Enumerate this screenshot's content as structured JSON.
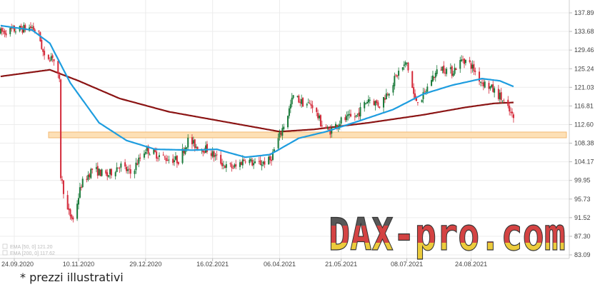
{
  "chart_data": {
    "type": "candlestick",
    "title": "",
    "xlabel": "",
    "ylabel": "",
    "x_ticks": [
      "24.09.2020",
      "10.11.2020",
      "29.12.2020",
      "16.02.2021",
      "06.04.2021",
      "21.05.2021",
      "08.07.2021",
      "24.08.2021"
    ],
    "y_ticks": [
      "137.89",
      "133.68",
      "129.46",
      "125.24",
      "121.03",
      "116.81",
      "112.60",
      "108.38",
      "104.17",
      "99.95",
      "95.73",
      "91.52",
      "87.30",
      "83.09"
    ],
    "ylim": [
      83.09,
      137.89
    ],
    "grid": true,
    "price_anchors": [
      {
        "d": "2020-09-14",
        "p": 133.5
      },
      {
        "d": "2020-09-24",
        "p": 134.0
      },
      {
        "d": "2020-10-07",
        "p": 134.6
      },
      {
        "d": "2020-10-12",
        "p": 133.0
      },
      {
        "d": "2020-10-16",
        "p": 127.5
      },
      {
        "d": "2020-10-22",
        "p": 128.2
      },
      {
        "d": "2020-10-27",
        "p": 122.0
      },
      {
        "d": "2020-10-28",
        "p": 101.0
      },
      {
        "d": "2020-11-02",
        "p": 93.0
      },
      {
        "d": "2020-11-06",
        "p": 91.0
      },
      {
        "d": "2020-11-12",
        "p": 99.0
      },
      {
        "d": "2020-11-20",
        "p": 102.5
      },
      {
        "d": "2020-12-01",
        "p": 101.0
      },
      {
        "d": "2020-12-10",
        "p": 103.5
      },
      {
        "d": "2020-12-18",
        "p": 101.5
      },
      {
        "d": "2020-12-29",
        "p": 107.0
      },
      {
        "d": "2021-01-12",
        "p": 105.0
      },
      {
        "d": "2021-01-22",
        "p": 104.5
      },
      {
        "d": "2021-01-29",
        "p": 109.0
      },
      {
        "d": "2021-02-05",
        "p": 107.5
      },
      {
        "d": "2021-02-12",
        "p": 107.0
      },
      {
        "d": "2021-02-19",
        "p": 105.0
      },
      {
        "d": "2021-02-26",
        "p": 103.0
      },
      {
        "d": "2021-03-05",
        "p": 103.0
      },
      {
        "d": "2021-03-12",
        "p": 105.0
      },
      {
        "d": "2021-03-19",
        "p": 103.5
      },
      {
        "d": "2021-03-30",
        "p": 104.5
      },
      {
        "d": "2021-04-06",
        "p": 110.0
      },
      {
        "d": "2021-04-12",
        "p": 115.0
      },
      {
        "d": "2021-04-16",
        "p": 119.0
      },
      {
        "d": "2021-04-23",
        "p": 117.5
      },
      {
        "d": "2021-04-30",
        "p": 117.0
      },
      {
        "d": "2021-05-06",
        "p": 113.0
      },
      {
        "d": "2021-05-12",
        "p": 111.0
      },
      {
        "d": "2021-05-21",
        "p": 113.5
      },
      {
        "d": "2021-06-01",
        "p": 114.5
      },
      {
        "d": "2021-06-10",
        "p": 118.5
      },
      {
        "d": "2021-06-18",
        "p": 117.0
      },
      {
        "d": "2021-06-25",
        "p": 120.5
      },
      {
        "d": "2021-07-02",
        "p": 124.5
      },
      {
        "d": "2021-07-08",
        "p": 126.5
      },
      {
        "d": "2021-07-14",
        "p": 118.0
      },
      {
        "d": "2021-07-20",
        "p": 119.0
      },
      {
        "d": "2021-07-26",
        "p": 123.0
      },
      {
        "d": "2021-08-02",
        "p": 125.5
      },
      {
        "d": "2021-08-10",
        "p": 124.5
      },
      {
        "d": "2021-08-18",
        "p": 127.5
      },
      {
        "d": "2021-08-24",
        "p": 126.0
      },
      {
        "d": "2021-08-31",
        "p": 122.5
      },
      {
        "d": "2021-09-07",
        "p": 121.0
      },
      {
        "d": "2021-09-14",
        "p": 119.0
      },
      {
        "d": "2021-09-20",
        "p": 116.0
      },
      {
        "d": "2021-09-24",
        "p": 114.0
      }
    ],
    "series": [
      {
        "name": "EMA [50, 0] 121.20",
        "color": "#1e9ddf"
      },
      {
        "name": "EMA [200, 0] 117.62",
        "color": "#8b1414"
      }
    ],
    "ema_anchors": {
      "ema50": [
        {
          "d": "2020-09-14",
          "p": 135.0
        },
        {
          "d": "2020-10-07",
          "p": 134.0
        },
        {
          "d": "2020-10-20",
          "p": 131.0
        },
        {
          "d": "2020-11-04",
          "p": 122.0
        },
        {
          "d": "2020-11-25",
          "p": 113.0
        },
        {
          "d": "2020-12-15",
          "p": 109.0
        },
        {
          "d": "2021-01-05",
          "p": 107.0
        },
        {
          "d": "2021-02-01",
          "p": 106.8
        },
        {
          "d": "2021-02-19",
          "p": 107.0
        },
        {
          "d": "2021-03-12",
          "p": 105.2
        },
        {
          "d": "2021-03-30",
          "p": 105.8
        },
        {
          "d": "2021-04-20",
          "p": 109.5
        },
        {
          "d": "2021-05-10",
          "p": 111.0
        },
        {
          "d": "2021-06-01",
          "p": 113.2
        },
        {
          "d": "2021-06-28",
          "p": 116.0
        },
        {
          "d": "2021-07-20",
          "p": 119.5
        },
        {
          "d": "2021-08-10",
          "p": 121.5
        },
        {
          "d": "2021-09-01",
          "p": 123.0
        },
        {
          "d": "2021-09-14",
          "p": 122.5
        },
        {
          "d": "2021-09-24",
          "p": 121.2
        }
      ],
      "ema200": [
        {
          "d": "2020-09-14",
          "p": 123.5
        },
        {
          "d": "2020-10-20",
          "p": 125.0
        },
        {
          "d": "2020-11-10",
          "p": 122.5
        },
        {
          "d": "2020-12-10",
          "p": 118.5
        },
        {
          "d": "2021-01-15",
          "p": 115.5
        },
        {
          "d": "2021-03-01",
          "p": 113.0
        },
        {
          "d": "2021-04-06",
          "p": 111.0
        },
        {
          "d": "2021-05-01",
          "p": 111.5
        },
        {
          "d": "2021-06-10",
          "p": 113.0
        },
        {
          "d": "2021-07-20",
          "p": 114.8
        },
        {
          "d": "2021-08-20",
          "p": 116.5
        },
        {
          "d": "2021-09-10",
          "p": 117.4
        },
        {
          "d": "2021-09-24",
          "p": 117.6
        }
      ]
    },
    "support_zone": {
      "low": 109.6,
      "high": 110.9,
      "color": "#fde0b6"
    },
    "colors": {
      "up": "#1a7a3a",
      "down": "#d42a3a"
    }
  },
  "watermark": "DAX-pro.com",
  "footnote": "* prezzi illustrativi"
}
